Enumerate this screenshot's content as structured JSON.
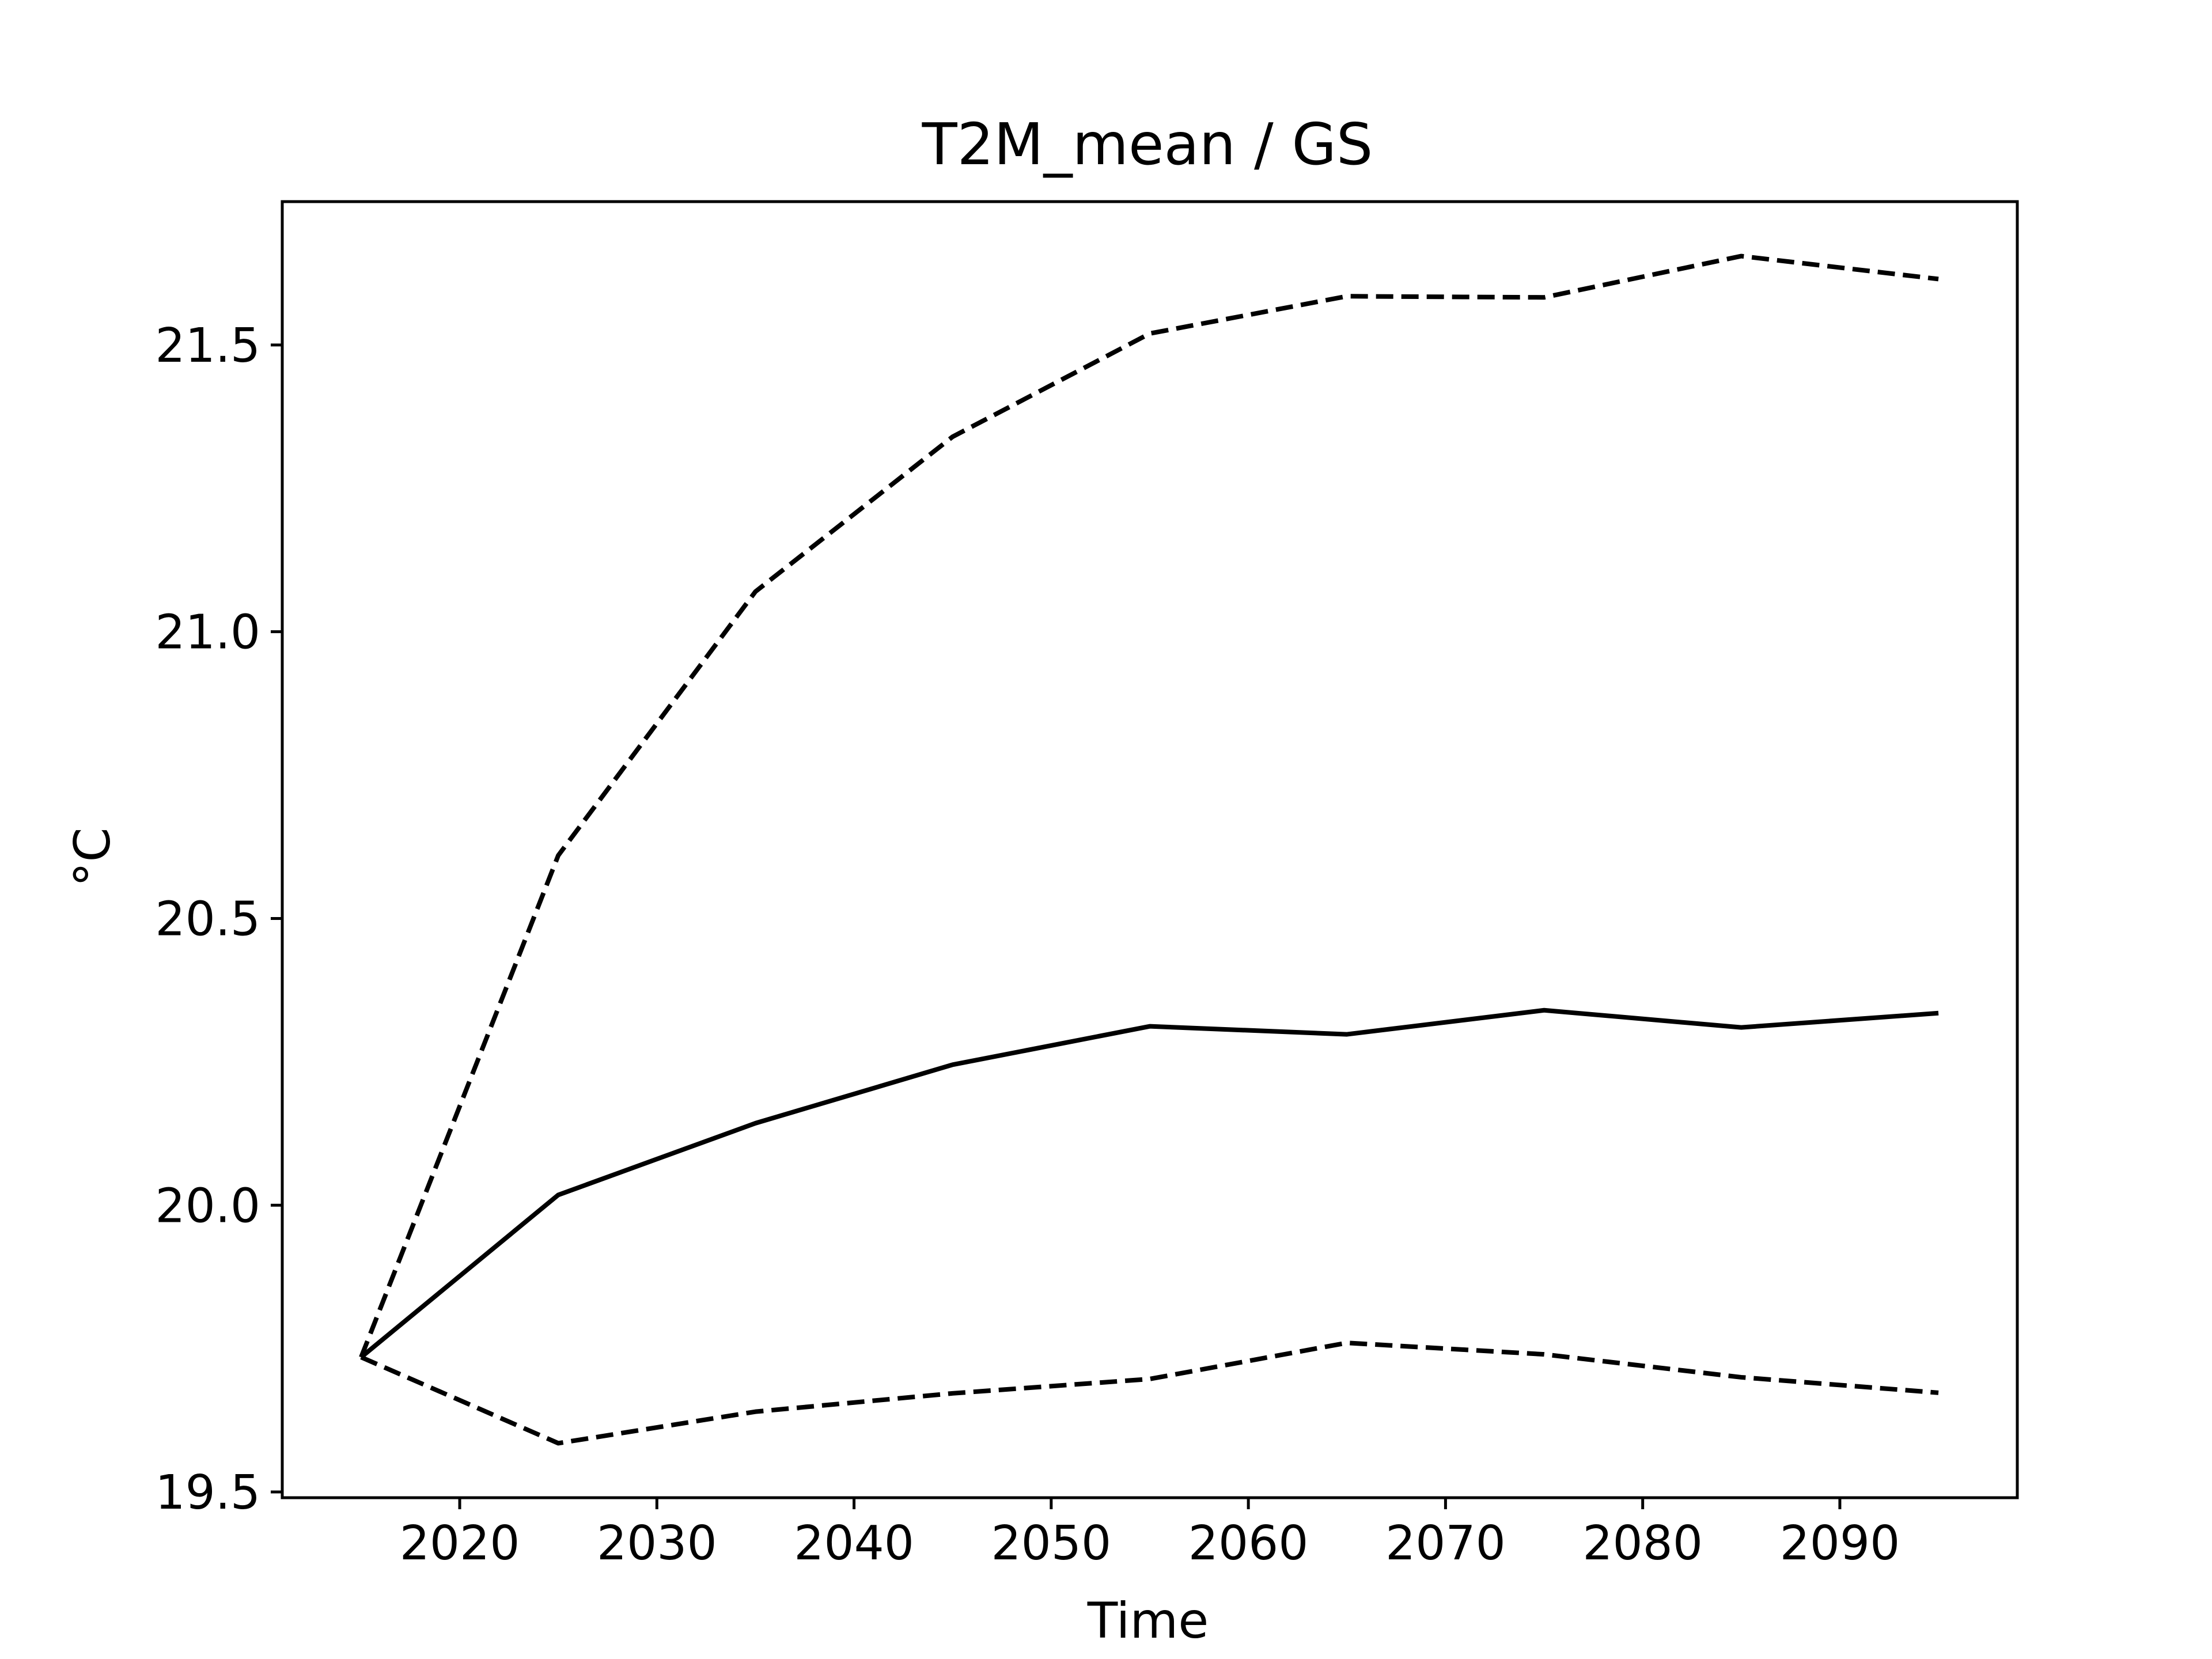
{
  "chart_data": {
    "type": "line",
    "title": "T2M_mean / GS",
    "xlabel": "Time",
    "ylabel": "°C",
    "x": [
      2015,
      2025,
      2035,
      2045,
      2055,
      2065,
      2075,
      2085,
      2095
    ],
    "xlim": [
      2011,
      2099
    ],
    "ylim": [
      19.49,
      21.75
    ],
    "xticks": [
      2020,
      2030,
      2040,
      2050,
      2060,
      2070,
      2080,
      2090
    ],
    "xtick_labels": [
      "2020",
      "2030",
      "2040",
      "2050",
      "2060",
      "2070",
      "2080",
      "2090"
    ],
    "yticks": [
      19.5,
      20.0,
      20.5,
      21.0,
      21.5
    ],
    "ytick_labels": [
      "19.5",
      "20.0",
      "20.5",
      "21.0",
      "21.5"
    ],
    "grid": false,
    "legend": "none",
    "series": [
      {
        "style": "dashed",
        "color": "#000000",
        "values": [
          19.735,
          20.61,
          21.07,
          21.34,
          21.52,
          21.585,
          21.583,
          21.655,
          21.615
        ]
      },
      {
        "style": "solid",
        "color": "#000000",
        "values": [
          19.735,
          20.018,
          20.143,
          20.245,
          20.312,
          20.298,
          20.34,
          20.31,
          20.335
        ]
      },
      {
        "style": "dashed",
        "color": "#000000",
        "values": [
          19.735,
          19.585,
          19.64,
          19.672,
          19.697,
          19.76,
          19.74,
          19.7,
          19.673
        ]
      }
    ]
  }
}
